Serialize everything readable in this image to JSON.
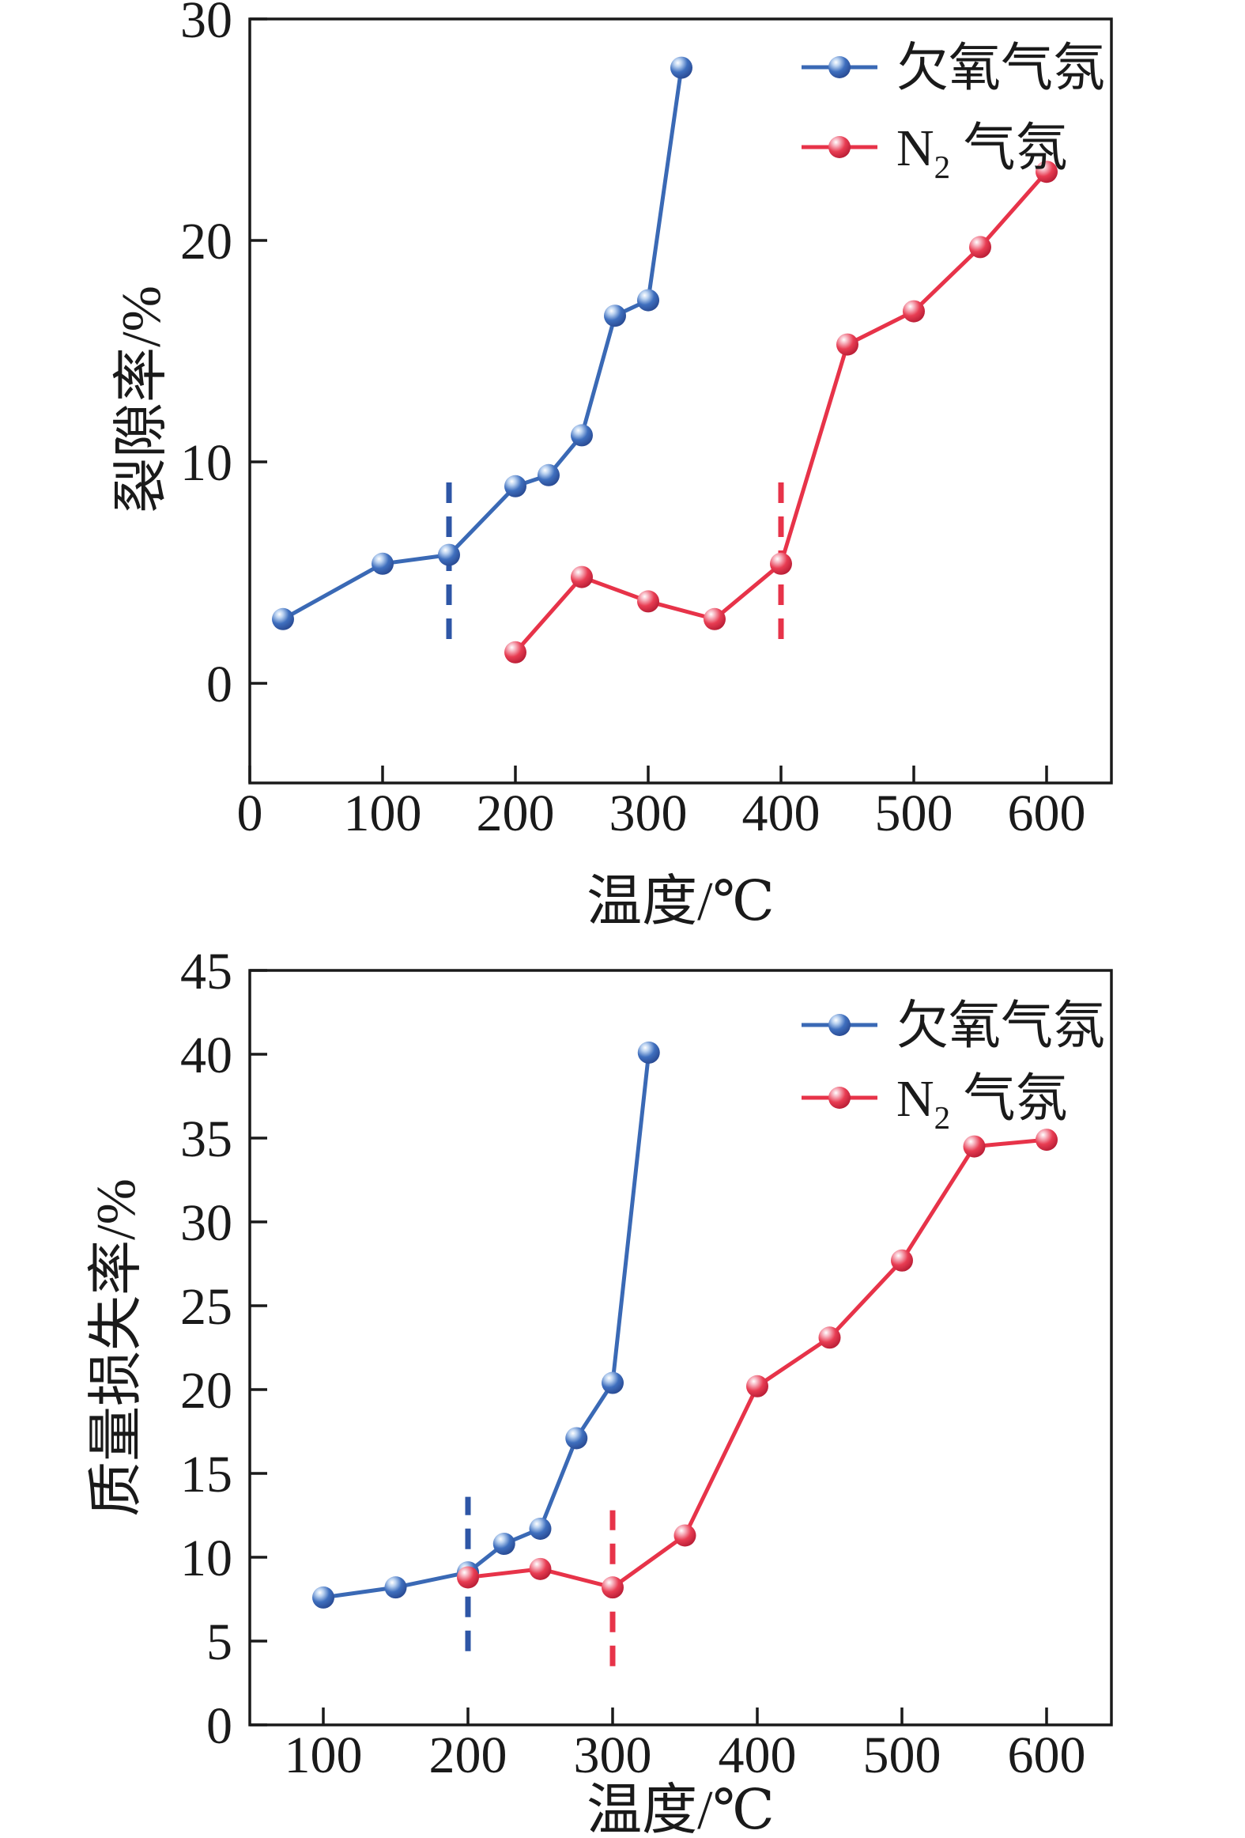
{
  "figure": {
    "background": "#ffffff",
    "text_color": "#1a1a1a",
    "blue_accent": "#3a69b5",
    "red_accent": "#e73349"
  },
  "chart_data": [
    {
      "id": "crack-rate",
      "type": "line",
      "title": "",
      "xlabel": "温度/℃",
      "ylabel": "裂隙率/%",
      "xlim": [
        0,
        650
      ],
      "ylim": [
        -4.5,
        30
      ],
      "x_ticks": [
        0,
        100,
        200,
        300,
        400,
        500,
        600
      ],
      "y_ticks": [
        0,
        10,
        20,
        30
      ],
      "grid": false,
      "legend_position": "upper right",
      "legend": [
        {
          "label": "欠氧气氛",
          "color": "#3a69b5",
          "parts": [
            {
              "t": "欠氧气氛"
            }
          ]
        },
        {
          "label": "N2 气氛",
          "color": "#e73349",
          "parts": [
            {
              "t": "N"
            },
            {
              "t": "2",
              "sub": true
            },
            {
              "t": " 气氛"
            }
          ]
        }
      ],
      "series": [
        {
          "name": "欠氧气氛",
          "color": "#3a69b5",
          "x": [
            25,
            100,
            150,
            200,
            225,
            250,
            275,
            300,
            325
          ],
          "y": [
            2.9,
            5.4,
            5.8,
            8.9,
            9.4,
            11.2,
            16.6,
            17.3,
            27.8
          ]
        },
        {
          "name": "N2 气氛",
          "color": "#e73349",
          "x": [
            200,
            250,
            300,
            350,
            400,
            450,
            500,
            550,
            600
          ],
          "y": [
            1.4,
            4.8,
            3.7,
            2.9,
            5.4,
            15.3,
            16.8,
            19.7,
            23.1
          ]
        }
      ],
      "dashed_guides": [
        {
          "name": "blue-threshold-150C",
          "color": "#2e56a6",
          "x": 150,
          "y_from": 2.0,
          "y_to": 9.6
        },
        {
          "name": "red-threshold-400C",
          "color": "#e73349",
          "x": 400,
          "y_from": 2.0,
          "y_to": 9.3
        }
      ]
    },
    {
      "id": "mass-loss",
      "type": "line",
      "title": "",
      "xlabel": "温度/℃",
      "ylabel": "质量损失率/%",
      "xlim": [
        50,
        645
      ],
      "ylim": [
        0,
        45
      ],
      "x_ticks": [
        100,
        200,
        300,
        400,
        500,
        600
      ],
      "y_ticks": [
        0,
        5,
        10,
        15,
        20,
        25,
        30,
        35,
        40,
        45
      ],
      "grid": false,
      "legend_position": "upper right",
      "legend": [
        {
          "label": "欠氧气氛",
          "color": "#3a69b5",
          "parts": [
            {
              "t": "欠氧气氛"
            }
          ]
        },
        {
          "label": "N2 气氛",
          "color": "#e73349",
          "parts": [
            {
              "t": "N"
            },
            {
              "t": "2",
              "sub": true
            },
            {
              "t": " 气氛"
            }
          ]
        }
      ],
      "series": [
        {
          "name": "欠氧气氛",
          "color": "#3a69b5",
          "x": [
            100,
            150,
            200,
            225,
            250,
            275,
            300,
            325
          ],
          "y": [
            7.6,
            8.2,
            9.1,
            10.8,
            11.7,
            17.1,
            20.4,
            40.1
          ]
        },
        {
          "name": "N2 气氛",
          "color": "#e73349",
          "x": [
            200,
            250,
            300,
            350,
            400,
            450,
            500,
            550,
            600
          ],
          "y": [
            8.8,
            9.3,
            8.2,
            11.3,
            20.2,
            23.1,
            27.7,
            34.5,
            34.9
          ]
        }
      ],
      "dashed_guides": [
        {
          "name": "blue-threshold-200C",
          "color": "#2e56a6",
          "x": 200,
          "y_from": 4.4,
          "y_to": 13.6
        },
        {
          "name": "red-threshold-300C",
          "color": "#e73349",
          "x": 300,
          "y_from": 3.5,
          "y_to": 12.8
        }
      ]
    }
  ]
}
